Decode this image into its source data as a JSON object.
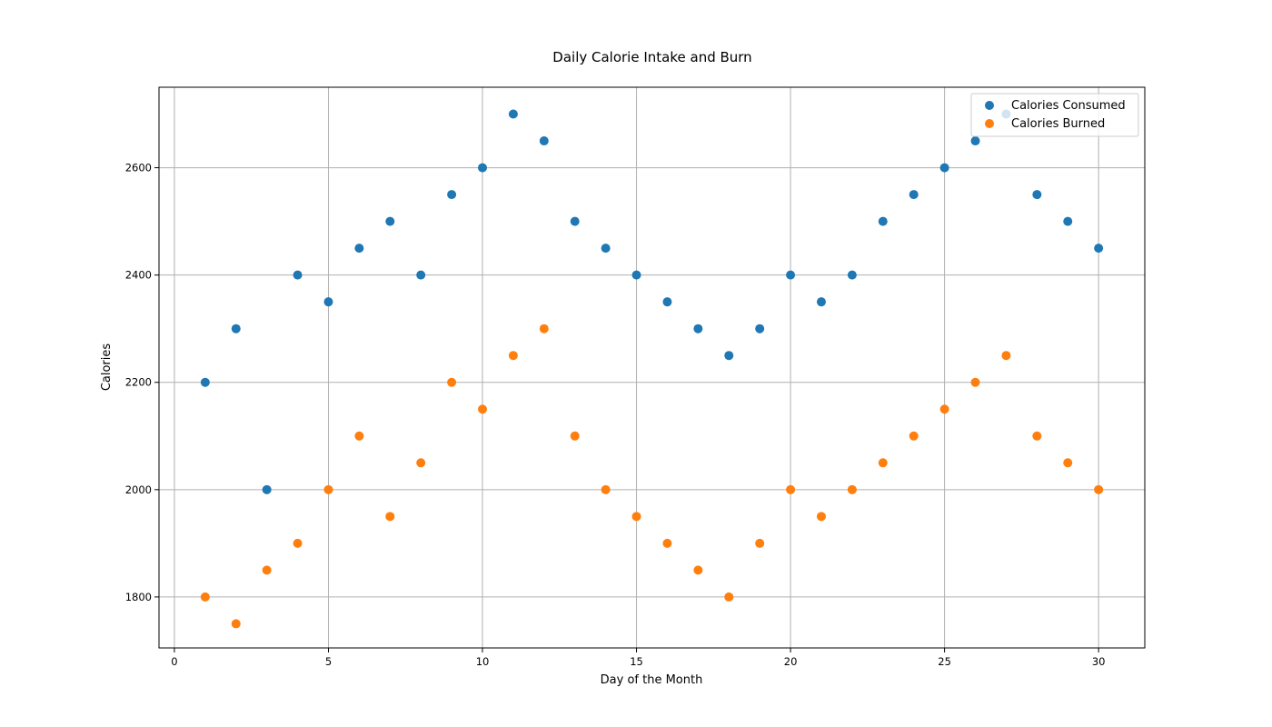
{
  "chart_data": {
    "type": "scatter",
    "title": "Daily Calorie Intake and Burn",
    "xlabel": "Day of the Month",
    "ylabel": "Calories",
    "xlim": [
      -0.5,
      31.5
    ],
    "ylim": [
      1705,
      2750
    ],
    "xticks": [
      0,
      5,
      10,
      15,
      20,
      25,
      30
    ],
    "yticks": [
      1800,
      2000,
      2200,
      2400,
      2600
    ],
    "grid": true,
    "legend_position": "upper right",
    "x": [
      1,
      2,
      3,
      4,
      5,
      6,
      7,
      8,
      9,
      10,
      11,
      12,
      13,
      14,
      15,
      16,
      17,
      18,
      19,
      20,
      21,
      22,
      23,
      24,
      25,
      26,
      27,
      28,
      29,
      30
    ],
    "series": [
      {
        "name": "Calories Consumed",
        "color": "#1f77b4",
        "values": [
          2200,
          2300,
          2000,
          2400,
          2350,
          2450,
          2500,
          2400,
          2550,
          2600,
          2700,
          2650,
          2500,
          2450,
          2400,
          2350,
          2300,
          2250,
          2300,
          2400,
          2350,
          2400,
          2500,
          2550,
          2600,
          2650,
          2700,
          2550,
          2500,
          2450
        ]
      },
      {
        "name": "Calories Burned",
        "color": "#ff7f0e",
        "values": [
          1800,
          1750,
          1850,
          1900,
          2000,
          2100,
          1950,
          2050,
          2200,
          2150,
          2250,
          2300,
          2100,
          2000,
          1950,
          1900,
          1850,
          1800,
          1900,
          2000,
          1950,
          2000,
          2050,
          2100,
          2150,
          2200,
          2250,
          2100,
          2050,
          2000
        ]
      }
    ]
  }
}
